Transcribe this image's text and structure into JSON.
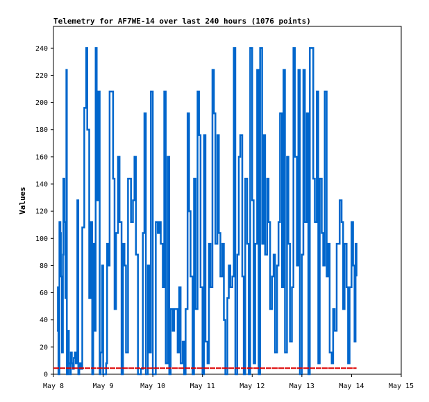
{
  "chart_data": {
    "type": "line",
    "title": "Telemetry for AF7WE-14 over last 240 hours (1076 points)",
    "xlabel": "",
    "ylabel": "Values",
    "x_ticks": [
      "May 8",
      "May 9",
      "May 10",
      "May 11",
      "May 12",
      "May 13",
      "May 14",
      "May 15"
    ],
    "xlim": [
      0,
      7
    ],
    "ylim": [
      0,
      256
    ],
    "y_ticks": [
      0,
      20,
      40,
      60,
      80,
      100,
      120,
      140,
      160,
      180,
      200,
      220,
      240
    ],
    "grid": false,
    "series": [
      {
        "color": "#0066cc",
        "x": [
          0.07,
          0.09,
          0.1,
          0.12,
          0.14,
          0.15,
          0.17,
          0.19,
          0.2,
          0.22,
          0.24,
          0.26,
          0.27,
          0.29,
          0.31,
          0.33,
          0.35,
          0.37,
          0.39,
          0.41,
          0.43,
          0.45,
          0.48,
          0.5,
          0.52,
          0.55,
          0.58,
          0.62,
          0.66,
          0.68,
          0.72,
          0.75,
          0.78,
          0.8,
          0.82,
          0.85,
          0.87,
          0.9,
          0.93,
          0.95,
          0.98,
          1.0,
          1.03,
          1.06,
          1.08,
          1.1,
          1.13,
          1.16,
          1.2,
          1.23,
          1.26,
          1.3,
          1.33,
          1.37,
          1.4,
          1.43,
          1.46,
          1.5,
          1.53,
          1.56,
          1.6,
          1.63,
          1.66,
          1.7,
          1.73,
          1.76,
          1.8,
          1.83,
          1.86,
          1.9,
          1.93,
          1.96,
          2.0,
          2.03,
          2.06,
          2.1,
          2.13,
          2.16,
          2.2,
          2.23,
          2.26,
          2.3,
          2.33,
          2.36,
          2.4,
          2.43,
          2.46,
          2.5,
          2.53,
          2.56,
          2.6,
          2.63,
          2.66,
          2.7,
          2.73,
          2.76,
          2.8,
          2.83,
          2.86,
          2.9,
          2.93,
          2.96,
          3.0,
          3.03,
          3.06,
          3.1,
          3.13,
          3.16,
          3.2,
          3.23,
          3.26,
          3.3,
          3.33,
          3.36,
          3.4,
          3.43,
          3.46,
          3.5,
          3.53,
          3.56,
          3.6,
          3.63,
          3.66,
          3.7,
          3.73,
          3.76,
          3.8,
          3.83,
          3.86,
          3.9,
          3.93,
          3.96,
          4.0,
          4.03,
          4.06,
          4.1,
          4.13,
          4.16,
          4.2,
          4.23,
          4.26,
          4.3,
          4.33,
          4.36,
          4.4,
          4.43,
          4.46,
          4.5,
          4.53,
          4.56,
          4.6,
          4.63,
          4.66,
          4.7,
          4.73,
          4.76,
          4.8,
          4.83,
          4.86,
          4.9,
          4.93,
          4.96,
          5.0,
          5.03,
          5.06,
          5.1,
          5.13,
          5.16,
          5.2,
          5.23,
          5.26,
          5.3,
          5.33,
          5.36,
          5.4,
          5.43,
          5.46,
          5.5,
          5.53,
          5.56,
          5.6,
          5.63,
          5.66,
          5.7,
          5.73,
          5.76,
          5.8,
          5.83,
          5.86,
          5.9,
          5.93,
          5.96,
          6.0,
          6.03,
          6.06,
          6.08,
          6.1
        ],
        "y": [
          32,
          64,
          0,
          112,
          104,
          72,
          16,
          88,
          144,
          112,
          56,
          224,
          0,
          32,
          8,
          0,
          16,
          8,
          4,
          12,
          16,
          8,
          128,
          0,
          8,
          4,
          108,
          196,
          240,
          180,
          56,
          112,
          0,
          96,
          32,
          240,
          128,
          208,
          0,
          16,
          80,
          0,
          0,
          8,
          96,
          80,
          208,
          208,
          144,
          48,
          104,
          160,
          112,
          0,
          96,
          80,
          16,
          144,
          144,
          112,
          128,
          160,
          88,
          0,
          0,
          4,
          104,
          192,
          0,
          80,
          16,
          208,
          0,
          0,
          112,
          104,
          112,
          96,
          64,
          208,
          8,
          160,
          0,
          48,
          32,
          48,
          48,
          16,
          64,
          8,
          24,
          0,
          48,
          192,
          120,
          72,
          0,
          144,
          48,
          208,
          176,
          64,
          0,
          176,
          24,
          8,
          96,
          64,
          224,
          192,
          96,
          176,
          104,
          72,
          96,
          40,
          0,
          56,
          80,
          64,
          72,
          240,
          0,
          88,
          160,
          176,
          72,
          0,
          144,
          96,
          0,
          240,
          128,
          8,
          96,
          224,
          0,
          240,
          96,
          176,
          88,
          144,
          112,
          48,
          72,
          88,
          16,
          80,
          112,
          192,
          64,
          224,
          16,
          160,
          96,
          24,
          64,
          240,
          160,
          80,
          224,
          0,
          88,
          224,
          112,
          192,
          0,
          240,
          240,
          144,
          112,
          208,
          8,
          144,
          104,
          80,
          208,
          72,
          96,
          16,
          8,
          48,
          32,
          96,
          96,
          128,
          112,
          48,
          96,
          64,
          8,
          64,
          112,
          80,
          24,
          96,
          72
        ]
      },
      {
        "color": "#dd0000",
        "x": [
          0.0,
          6.1
        ],
        "y": [
          4.5,
          4.5
        ]
      }
    ]
  }
}
